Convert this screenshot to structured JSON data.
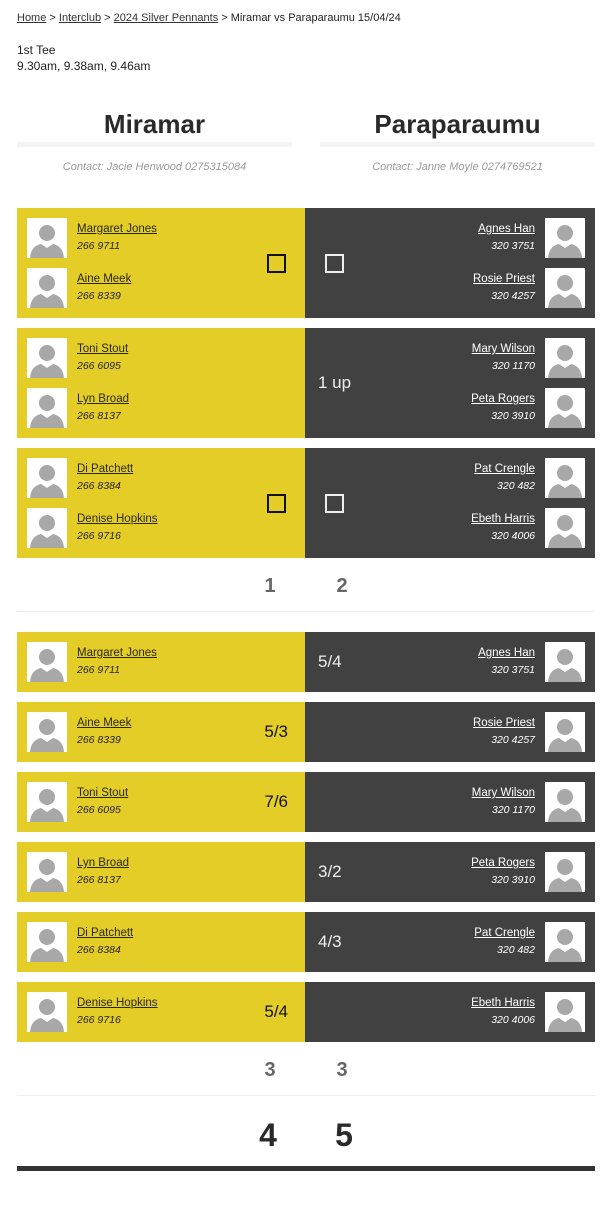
{
  "breadcrumb": {
    "items": [
      "Home",
      "Interclub",
      "2024 Silver Pennants"
    ],
    "current": "Miramar vs Paraparaumu 15/04/24",
    "separator": ">"
  },
  "tee": {
    "label": "1st Tee",
    "times": "9.30am, 9.38am, 9.46am"
  },
  "teams": [
    {
      "name": "Miramar",
      "contact": "Contact: Jacie Henwood 0275315084"
    },
    {
      "name": "Paraparaumu",
      "contact": "Contact: Janne Moyle 0274769521"
    }
  ],
  "colors": {
    "home": "#e5cd28",
    "away": "#414141"
  },
  "foursomes": [
    {
      "left": [
        {
          "name": "Margaret Jones",
          "phone": "266 9711"
        },
        {
          "name": "Aine Meek",
          "phone": "266 8339"
        }
      ],
      "right": [
        {
          "name": "Agnes Han",
          "phone": "320 3751"
        },
        {
          "name": "Rosie Priest",
          "phone": "320 4257"
        }
      ],
      "winner": "",
      "result": ""
    },
    {
      "left": [
        {
          "name": "Toni Stout",
          "phone": "266 6095"
        },
        {
          "name": "Lyn Broad",
          "phone": "266 8137"
        }
      ],
      "right": [
        {
          "name": "Mary Wilson",
          "phone": "320 1170"
        },
        {
          "name": "Peta Rogers",
          "phone": "320 3910"
        }
      ],
      "winner": "right",
      "result": "1 up"
    },
    {
      "left": [
        {
          "name": "Di Patchett",
          "phone": "266 8384"
        },
        {
          "name": "Denise Hopkins",
          "phone": "266 9716"
        }
      ],
      "right": [
        {
          "name": "Pat Crengle",
          "phone": "320 482"
        },
        {
          "name": "Ebeth Harris",
          "phone": "320 4006"
        }
      ],
      "winner": "",
      "result": ""
    }
  ],
  "foursomes_score": [
    "1",
    "2"
  ],
  "singles": [
    {
      "left": [
        {
          "name": "Margaret Jones",
          "phone": "266 9711"
        }
      ],
      "right": [
        {
          "name": "Agnes Han",
          "phone": "320 3751"
        }
      ],
      "winner": "right",
      "result": "5/4"
    },
    {
      "left": [
        {
          "name": "Aine Meek",
          "phone": "266 8339"
        }
      ],
      "right": [
        {
          "name": "Rosie Priest",
          "phone": "320 4257"
        }
      ],
      "winner": "left",
      "result": "5/3"
    },
    {
      "left": [
        {
          "name": "Toni Stout",
          "phone": "266 6095"
        }
      ],
      "right": [
        {
          "name": "Mary Wilson",
          "phone": "320 1170"
        }
      ],
      "winner": "left",
      "result": "7/6"
    },
    {
      "left": [
        {
          "name": "Lyn Broad",
          "phone": "266 8137"
        }
      ],
      "right": [
        {
          "name": "Peta Rogers",
          "phone": "320 3910"
        }
      ],
      "winner": "right",
      "result": "3/2"
    },
    {
      "left": [
        {
          "name": "Di Patchett",
          "phone": "266 8384"
        }
      ],
      "right": [
        {
          "name": "Pat Crengle",
          "phone": "320 482"
        }
      ],
      "winner": "right",
      "result": "4/3"
    },
    {
      "left": [
        {
          "name": "Denise Hopkins",
          "phone": "266 9716"
        }
      ],
      "right": [
        {
          "name": "Ebeth Harris",
          "phone": "320 4006"
        }
      ],
      "winner": "left",
      "result": "5/4"
    }
  ],
  "singles_score": [
    "3",
    "3"
  ],
  "total_score": [
    "4",
    "5"
  ]
}
